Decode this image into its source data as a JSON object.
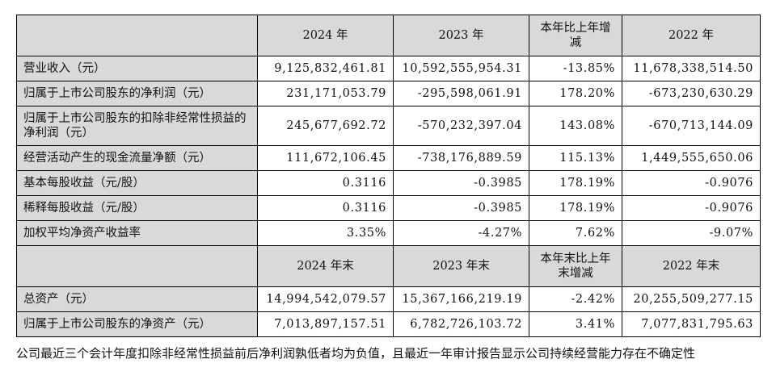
{
  "header1": {
    "col1": "2024 年",
    "col2": "2023 年",
    "col3": "本年比上年增减",
    "col4": "2022 年"
  },
  "header2": {
    "col1": "2024 年末",
    "col2": "2023 年末",
    "col3": "本年末比上年末增减",
    "col4": "2022 年末"
  },
  "rows1": [
    {
      "label": "营业收入（元）",
      "v2024": "9,125,832,461.81",
      "v2023": "10,592,555,954.31",
      "change": "-13.85%",
      "v2022": "11,678,338,514.50"
    },
    {
      "label": "归属于上市公司股东的净利润（元）",
      "v2024": "231,171,053.79",
      "v2023": "-295,598,061.91",
      "change": "178.20%",
      "v2022": "-673,230,630.29"
    },
    {
      "label": "归属于上市公司股东的扣除非经常性损益的净利润（元）",
      "v2024": "245,677,692.72",
      "v2023": "-570,232,397.04",
      "change": "143.08%",
      "v2022": "-670,713,144.09"
    },
    {
      "label": "经营活动产生的现金流量净额（元）",
      "v2024": "111,672,106.45",
      "v2023": "-738,176,889.59",
      "change": "115.13%",
      "v2022": "1,449,555,650.06"
    },
    {
      "label": "基本每股收益（元/股）",
      "v2024": "0.3116",
      "v2023": "-0.3985",
      "change": "178.19%",
      "v2022": "-0.9076"
    },
    {
      "label": "稀释每股收益（元/股）",
      "v2024": "0.3116",
      "v2023": "-0.3985",
      "change": "178.19%",
      "v2022": "-0.9076"
    },
    {
      "label": "加权平均净资产收益率",
      "v2024": "3.35%",
      "v2023": "-4.27%",
      "change": "7.62%",
      "v2022": "-9.07%"
    }
  ],
  "rows2": [
    {
      "label": "总资产（元）",
      "v2024": "14,994,542,079.57",
      "v2023": "15,367,166,219.19",
      "change": "-2.42%",
      "v2022": "20,255,509,277.15"
    },
    {
      "label": "归属于上市公司股东的净资产（元）",
      "v2024": "7,013,897,157.51",
      "v2023": "6,782,726,103.72",
      "change": "3.41%",
      "v2022": "7,077,831,795.63"
    }
  ],
  "note": "公司最近三个会计年度扣除非经常性损益前后净利润孰低者均为负值，且最近一年审计报告显示公司持续经营能力存在不确定性"
}
